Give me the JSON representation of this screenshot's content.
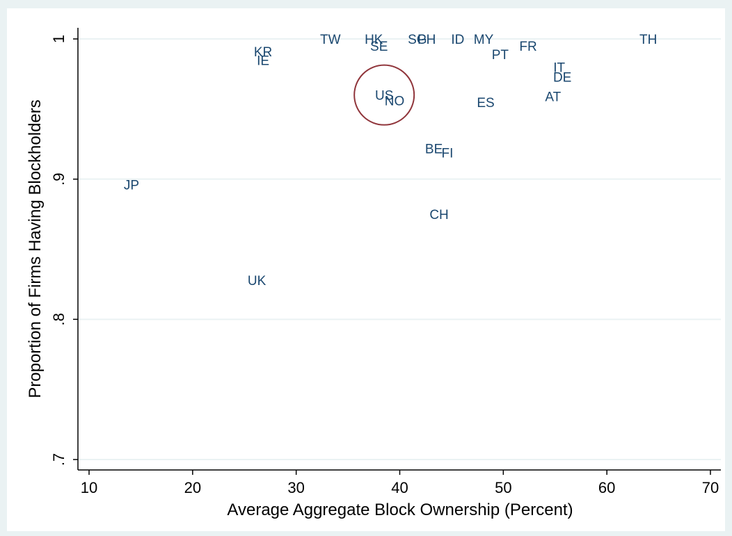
{
  "chart_data": {
    "type": "scatter",
    "title": "",
    "xlabel": "Average Aggregate Block Ownership (Percent)",
    "ylabel": "Proportion of Firms Having Blockholders",
    "xlim": [
      10,
      70
    ],
    "ylim": [
      0.7,
      1.0
    ],
    "xticks": [
      10,
      20,
      30,
      40,
      50,
      60,
      70
    ],
    "xtick_labels": [
      "10",
      "20",
      "30",
      "40",
      "50",
      "60",
      "70"
    ],
    "yticks": [
      0.7,
      0.8,
      0.9,
      1.0
    ],
    "ytick_labels": [
      ".7",
      ".8",
      ".9",
      "1"
    ],
    "grid": true,
    "marker": "label",
    "points": [
      {
        "label": "TW",
        "x": 33.3,
        "y": 1.0
      },
      {
        "label": "HK",
        "x": 37.5,
        "y": 1.0
      },
      {
        "label": "SE",
        "x": 38.0,
        "y": 0.995
      },
      {
        "label": "SG",
        "x": 41.7,
        "y": 1.0
      },
      {
        "label": "PH",
        "x": 42.6,
        "y": 1.0
      },
      {
        "label": "ID",
        "x": 45.6,
        "y": 1.0
      },
      {
        "label": "MY",
        "x": 48.1,
        "y": 1.0
      },
      {
        "label": "TH",
        "x": 64.0,
        "y": 1.0
      },
      {
        "label": "KR",
        "x": 26.8,
        "y": 0.991
      },
      {
        "label": "IE",
        "x": 26.8,
        "y": 0.985
      },
      {
        "label": "FR",
        "x": 52.4,
        "y": 0.995
      },
      {
        "label": "PT",
        "x": 49.7,
        "y": 0.989
      },
      {
        "label": "IT",
        "x": 55.4,
        "y": 0.98
      },
      {
        "label": "DE",
        "x": 55.7,
        "y": 0.973
      },
      {
        "label": "AT",
        "x": 54.8,
        "y": 0.959
      },
      {
        "label": "US",
        "x": 38.5,
        "y": 0.96
      },
      {
        "label": "NO",
        "x": 39.5,
        "y": 0.956
      },
      {
        "label": "ES",
        "x": 48.3,
        "y": 0.955
      },
      {
        "label": "BE",
        "x": 43.3,
        "y": 0.922
      },
      {
        "label": "FI",
        "x": 44.6,
        "y": 0.919
      },
      {
        "label": "CH",
        "x": 43.8,
        "y": 0.875
      },
      {
        "label": "JP",
        "x": 14.1,
        "y": 0.896
      },
      {
        "label": "UK",
        "x": 26.2,
        "y": 0.828
      }
    ],
    "highlight": {
      "label": "US",
      "shape": "circle"
    }
  },
  "colors": {
    "outer_background": "#eaf2f3",
    "plot_background": "#ffffff",
    "gridline": "#eaf2f3",
    "axis": "#000000",
    "label": "#1a476f",
    "highlight_circle": "#90353b"
  }
}
